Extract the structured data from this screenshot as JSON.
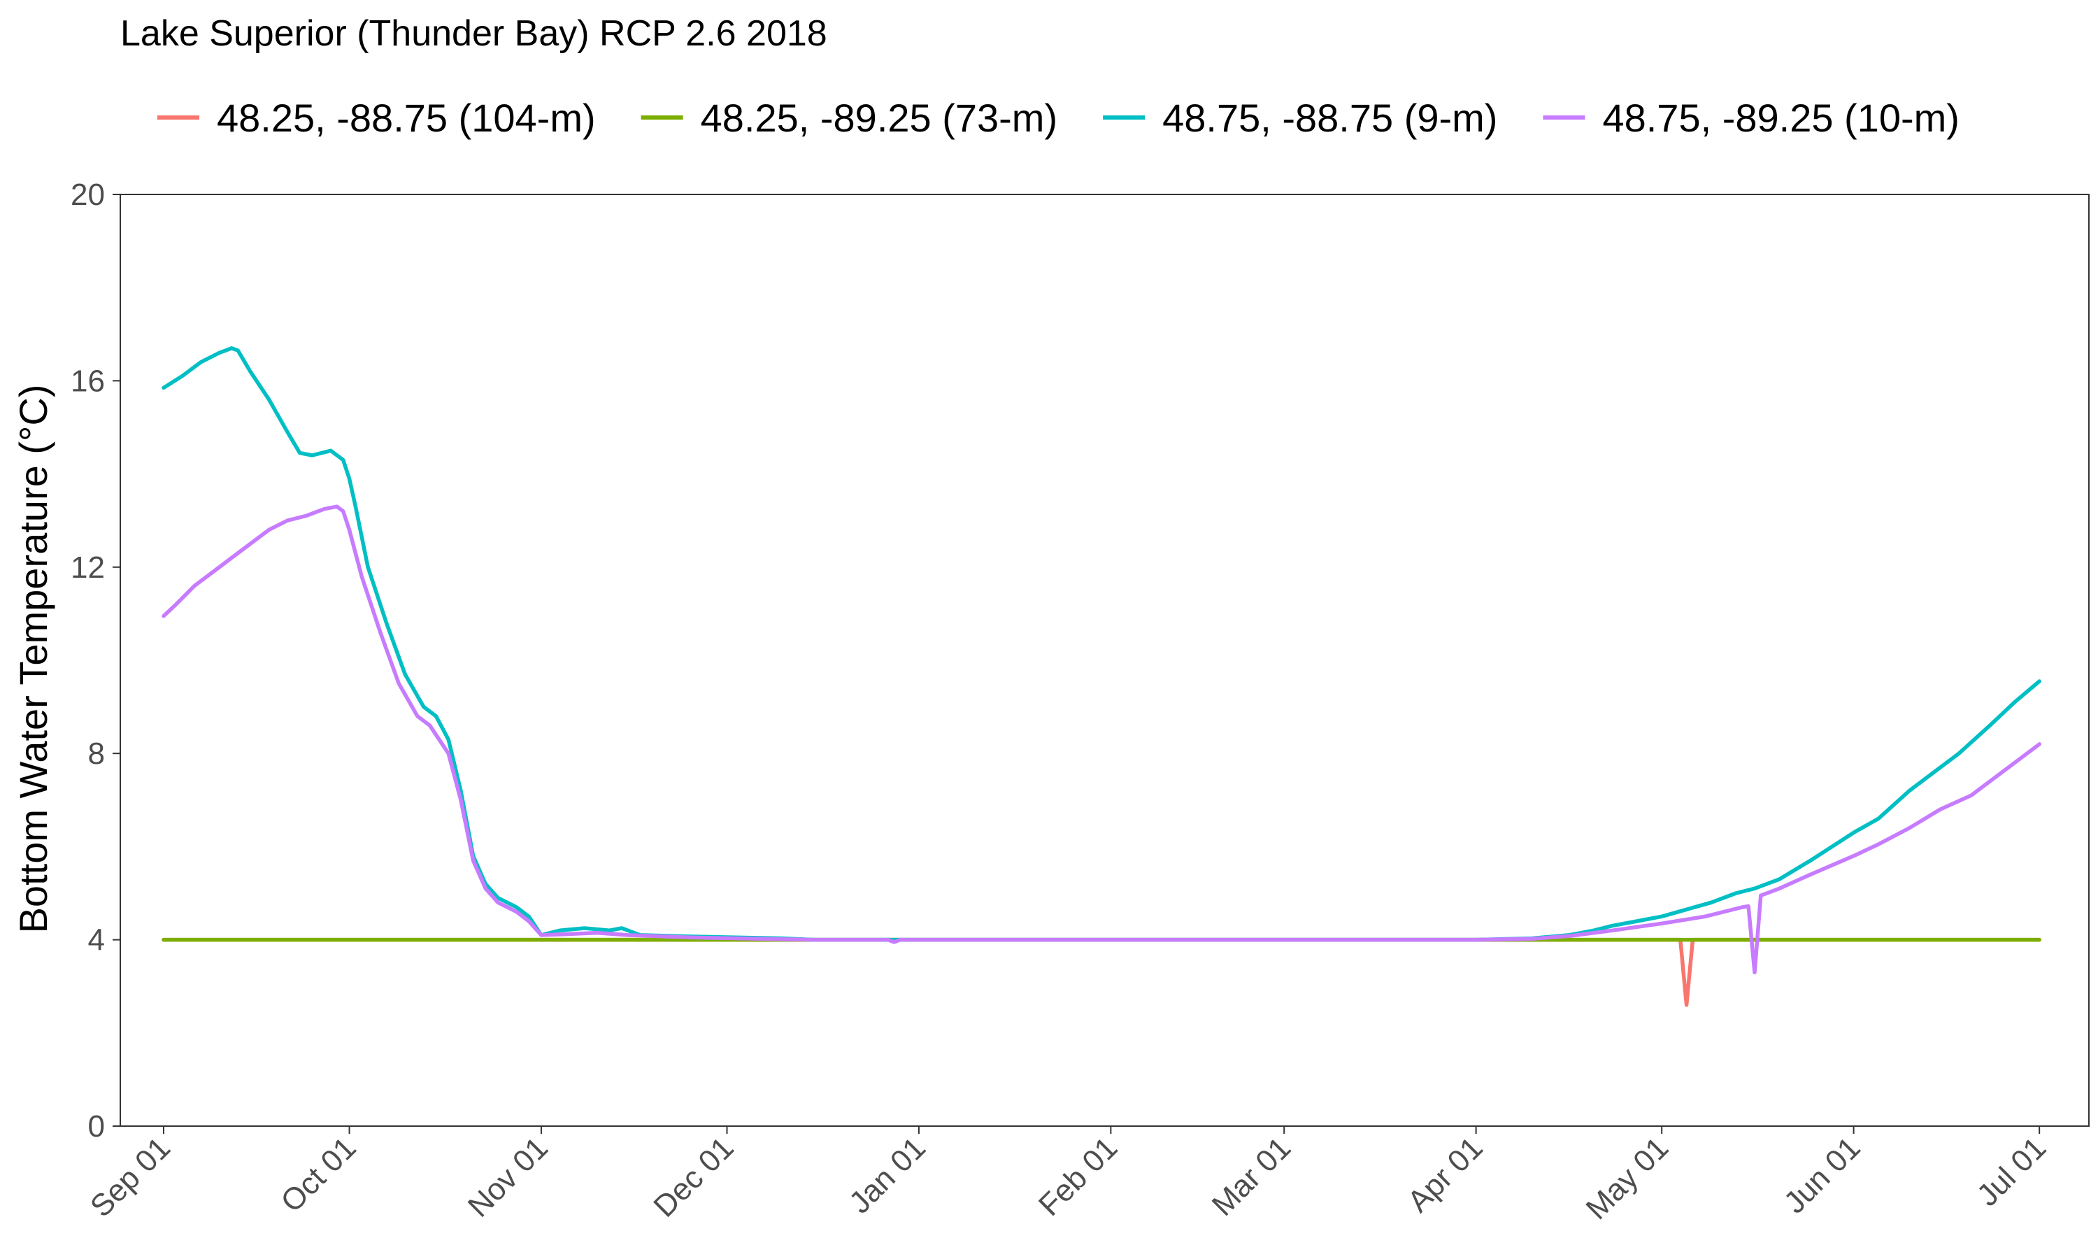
{
  "chart_data": {
    "type": "line",
    "title": "Lake Superior (Thunder Bay) RCP 2.6 2018",
    "xlabel": "",
    "ylabel": "Bottom Water Temperature (°C)",
    "ylim": [
      0,
      20
    ],
    "yticks": [
      "0",
      "4",
      "8",
      "12",
      "16",
      "20"
    ],
    "xlim": [
      "2018-08-25",
      "2019-07-09"
    ],
    "xticks": [
      {
        "date": "2018-09-01",
        "label": "Sep 01"
      },
      {
        "date": "2018-10-01",
        "label": "Oct 01"
      },
      {
        "date": "2018-11-01",
        "label": "Nov 01"
      },
      {
        "date": "2018-12-01",
        "label": "Dec 01"
      },
      {
        "date": "2019-01-01",
        "label": "Jan 01"
      },
      {
        "date": "2019-02-01",
        "label": "Feb 01"
      },
      {
        "date": "2019-03-01",
        "label": "Mar 01"
      },
      {
        "date": "2019-04-01",
        "label": "Apr 01"
      },
      {
        "date": "2019-05-01",
        "label": "May 01"
      },
      {
        "date": "2019-06-01",
        "label": "Jun 01"
      },
      {
        "date": "2019-07-01",
        "label": "Jul 01"
      }
    ],
    "grid": false,
    "legend_position": "top",
    "series": [
      {
        "name": "48.25, -88.75 (104-m)",
        "color": "#F8766D",
        "points": [
          [
            "2018-09-01",
            4.0
          ],
          [
            "2018-12-01",
            4.0
          ],
          [
            "2019-03-01",
            4.0
          ],
          [
            "2019-05-04",
            4.0
          ],
          [
            "2019-05-05",
            2.6
          ],
          [
            "2019-05-06",
            4.0
          ],
          [
            "2019-07-01",
            4.0
          ]
        ]
      },
      {
        "name": "48.25, -89.25 (73-m)",
        "color": "#7CAE00",
        "points": [
          [
            "2018-09-01",
            4.0
          ],
          [
            "2018-12-01",
            4.0
          ],
          [
            "2019-03-01",
            4.0
          ],
          [
            "2019-07-01",
            4.0
          ]
        ]
      },
      {
        "name": "48.75, -88.75 (9-m)",
        "color": "#00BFC4",
        "points": [
          [
            "2018-09-01",
            15.85
          ],
          [
            "2018-09-04",
            16.1
          ],
          [
            "2018-09-07",
            16.4
          ],
          [
            "2018-09-10",
            16.6
          ],
          [
            "2018-09-12",
            16.7
          ],
          [
            "2018-09-13",
            16.65
          ],
          [
            "2018-09-15",
            16.2
          ],
          [
            "2018-09-18",
            15.6
          ],
          [
            "2018-09-21",
            14.9
          ],
          [
            "2018-09-23",
            14.45
          ],
          [
            "2018-09-25",
            14.4
          ],
          [
            "2018-09-28",
            14.5
          ],
          [
            "2018-09-30",
            14.3
          ],
          [
            "2018-10-01",
            13.9
          ],
          [
            "2018-10-02",
            13.3
          ],
          [
            "2018-10-04",
            12.0
          ],
          [
            "2018-10-07",
            10.8
          ],
          [
            "2018-10-10",
            9.7
          ],
          [
            "2018-10-13",
            9.0
          ],
          [
            "2018-10-15",
            8.8
          ],
          [
            "2018-10-17",
            8.3
          ],
          [
            "2018-10-19",
            7.2
          ],
          [
            "2018-10-21",
            5.8
          ],
          [
            "2018-10-23",
            5.2
          ],
          [
            "2018-10-25",
            4.9
          ],
          [
            "2018-10-28",
            4.7
          ],
          [
            "2018-10-30",
            4.5
          ],
          [
            "2018-11-01",
            4.1
          ],
          [
            "2018-11-04",
            4.2
          ],
          [
            "2018-11-08",
            4.25
          ],
          [
            "2018-11-12",
            4.2
          ],
          [
            "2018-11-14",
            4.25
          ],
          [
            "2018-11-17",
            4.1
          ],
          [
            "2018-11-25",
            4.07
          ],
          [
            "2018-12-10",
            4.03
          ],
          [
            "2018-12-15",
            4.0
          ],
          [
            "2019-01-01",
            4.0
          ],
          [
            "2019-02-01",
            4.0
          ],
          [
            "2019-03-01",
            4.0
          ],
          [
            "2019-04-01",
            4.0
          ],
          [
            "2019-04-10",
            4.03
          ],
          [
            "2019-04-16",
            4.1
          ],
          [
            "2019-04-20",
            4.2
          ],
          [
            "2019-04-23",
            4.3
          ],
          [
            "2019-04-27",
            4.4
          ],
          [
            "2019-05-01",
            4.5
          ],
          [
            "2019-05-05",
            4.65
          ],
          [
            "2019-05-09",
            4.8
          ],
          [
            "2019-05-13",
            5.0
          ],
          [
            "2019-05-16",
            5.1
          ],
          [
            "2019-05-20",
            5.3
          ],
          [
            "2019-05-25",
            5.7
          ],
          [
            "2019-06-01",
            6.3
          ],
          [
            "2019-06-05",
            6.6
          ],
          [
            "2019-06-10",
            7.2
          ],
          [
            "2019-06-15",
            7.7
          ],
          [
            "2019-06-18",
            8.0
          ],
          [
            "2019-06-23",
            8.6
          ],
          [
            "2019-06-27",
            9.1
          ],
          [
            "2019-07-01",
            9.55
          ]
        ]
      },
      {
        "name": "48.75, -89.25 (10-m)",
        "color": "#C77CFF",
        "points": [
          [
            "2018-09-01",
            10.95
          ],
          [
            "2018-09-03",
            11.2
          ],
          [
            "2018-09-06",
            11.6
          ],
          [
            "2018-09-09",
            11.9
          ],
          [
            "2018-09-12",
            12.2
          ],
          [
            "2018-09-15",
            12.5
          ],
          [
            "2018-09-18",
            12.8
          ],
          [
            "2018-09-21",
            13.0
          ],
          [
            "2018-09-24",
            13.1
          ],
          [
            "2018-09-27",
            13.25
          ],
          [
            "2018-09-29",
            13.3
          ],
          [
            "2018-09-30",
            13.2
          ],
          [
            "2018-10-01",
            12.8
          ],
          [
            "2018-10-03",
            11.8
          ],
          [
            "2018-10-06",
            10.6
          ],
          [
            "2018-10-09",
            9.5
          ],
          [
            "2018-10-12",
            8.8
          ],
          [
            "2018-10-14",
            8.6
          ],
          [
            "2018-10-17",
            8.0
          ],
          [
            "2018-10-19",
            7.0
          ],
          [
            "2018-10-21",
            5.7
          ],
          [
            "2018-10-23",
            5.1
          ],
          [
            "2018-10-25",
            4.8
          ],
          [
            "2018-10-28",
            4.6
          ],
          [
            "2018-10-30",
            4.4
          ],
          [
            "2018-11-01",
            4.1
          ],
          [
            "2018-11-05",
            4.12
          ],
          [
            "2018-11-10",
            4.15
          ],
          [
            "2018-11-15",
            4.1
          ],
          [
            "2018-11-25",
            4.05
          ],
          [
            "2018-12-15",
            4.0
          ],
          [
            "2018-12-27",
            4.0
          ],
          [
            "2018-12-28",
            3.95
          ],
          [
            "2018-12-29",
            4.0
          ],
          [
            "2019-02-01",
            4.0
          ],
          [
            "2019-03-01",
            4.0
          ],
          [
            "2019-04-01",
            4.0
          ],
          [
            "2019-04-10",
            4.02
          ],
          [
            "2019-04-16",
            4.08
          ],
          [
            "2019-04-23",
            4.2
          ],
          [
            "2019-05-01",
            4.35
          ],
          [
            "2019-05-08",
            4.5
          ],
          [
            "2019-05-14",
            4.7
          ],
          [
            "2019-05-15",
            4.72
          ],
          [
            "2019-05-16",
            3.3
          ],
          [
            "2019-05-17",
            4.95
          ],
          [
            "2019-05-20",
            5.1
          ],
          [
            "2019-05-25",
            5.4
          ],
          [
            "2019-06-01",
            5.8
          ],
          [
            "2019-06-05",
            6.05
          ],
          [
            "2019-06-10",
            6.4
          ],
          [
            "2019-06-15",
            6.8
          ],
          [
            "2019-06-20",
            7.1
          ],
          [
            "2019-06-25",
            7.6
          ],
          [
            "2019-07-01",
            8.2
          ]
        ]
      }
    ]
  }
}
